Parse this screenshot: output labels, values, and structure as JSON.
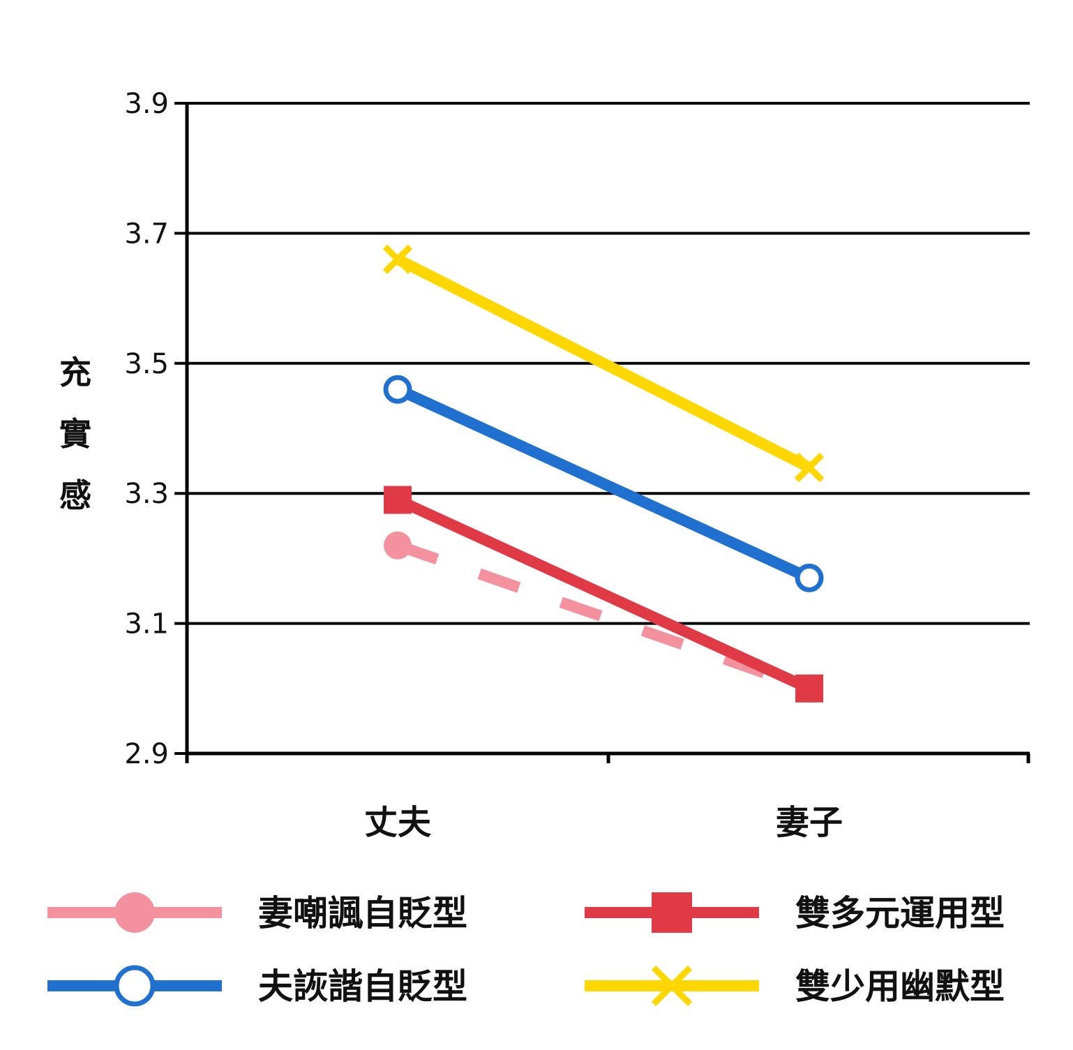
{
  "chart_data": {
    "type": "line",
    "title": "",
    "xlabel": "",
    "ylabel": "充實感",
    "categories": [
      "丈夫",
      "妻子"
    ],
    "ylim": [
      2.9,
      3.9
    ],
    "yticks": [
      "3.9",
      "3.7",
      "3.5",
      "3.3",
      "3.1",
      "2.9"
    ],
    "grid": true,
    "legend_position": "bottom",
    "series": [
      {
        "name": "妻嘲諷自貶型",
        "values": [
          3.22,
          3.0
        ],
        "color": "#F4919F",
        "marker": "circle-filled",
        "dash": true
      },
      {
        "name": "雙多元運用型",
        "values": [
          3.29,
          3.0
        ],
        "color": "#E03A47",
        "marker": "square",
        "dash": false
      },
      {
        "name": "夫詼諧自貶型",
        "values": [
          3.46,
          3.17
        ],
        "color": "#2070D0",
        "marker": "circle-open",
        "dash": false
      },
      {
        "name": "雙少用幽默型",
        "values": [
          3.66,
          3.34
        ],
        "color": "#FFD700",
        "marker": "x",
        "dash": false
      }
    ]
  }
}
